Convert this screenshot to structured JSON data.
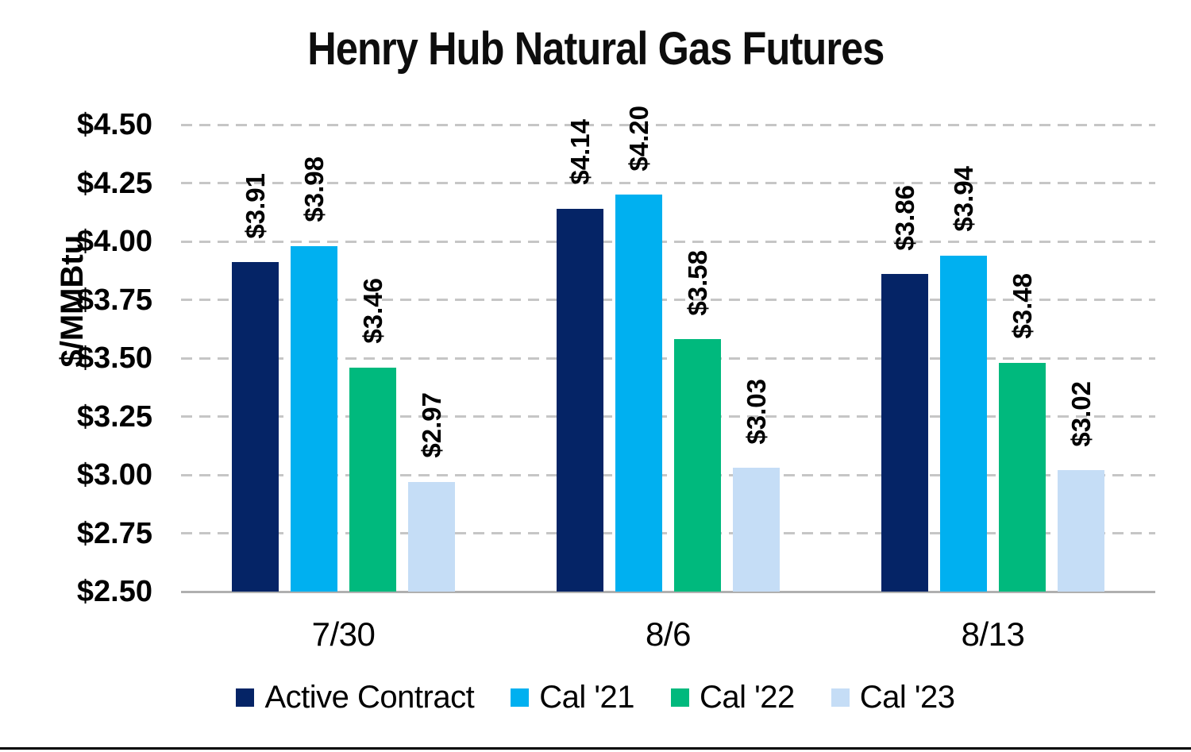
{
  "chart_data": {
    "type": "bar",
    "title": "Henry Hub Natural Gas Futures",
    "ylabel": "$/MMBtu",
    "xlabel": "",
    "ylim": [
      2.5,
      4.5
    ],
    "ytick_step": 0.25,
    "ytick_values": [
      4.5,
      4.25,
      4.0,
      3.75,
      3.5,
      3.25,
      3.0,
      2.75,
      2.5
    ],
    "ytick_labels": [
      "$4.50",
      "$4.25",
      "$4.00",
      "$3.75",
      "$3.50",
      "$3.25",
      "$3.00",
      "$2.75",
      "$2.50"
    ],
    "categories": [
      "7/30",
      "8/6",
      "8/13"
    ],
    "series": [
      {
        "name": "Active Contract",
        "color": "#052466",
        "values": [
          3.91,
          4.14,
          3.86
        ],
        "labels": [
          "$3.91",
          "$4.14",
          "$3.86"
        ]
      },
      {
        "name": "Cal '21",
        "color": "#00b0f0",
        "values": [
          3.98,
          4.2,
          3.94
        ],
        "labels": [
          "$3.98",
          "$4.20",
          "$3.94"
        ]
      },
      {
        "name": "Cal '22",
        "color": "#00b97d",
        "values": [
          3.46,
          3.58,
          3.48
        ],
        "labels": [
          "$3.46",
          "$3.58",
          "$3.48"
        ]
      },
      {
        "name": "Cal '23",
        "color": "#c5ddf6",
        "values": [
          2.97,
          3.03,
          3.02
        ],
        "labels": [
          "$2.97",
          "$3.03",
          "$3.02"
        ]
      }
    ],
    "grid": {
      "horizontal": "dashed",
      "color": "#c6c6c6"
    },
    "axis_line_color": "#b0b0b0",
    "legend_position": "bottom"
  }
}
